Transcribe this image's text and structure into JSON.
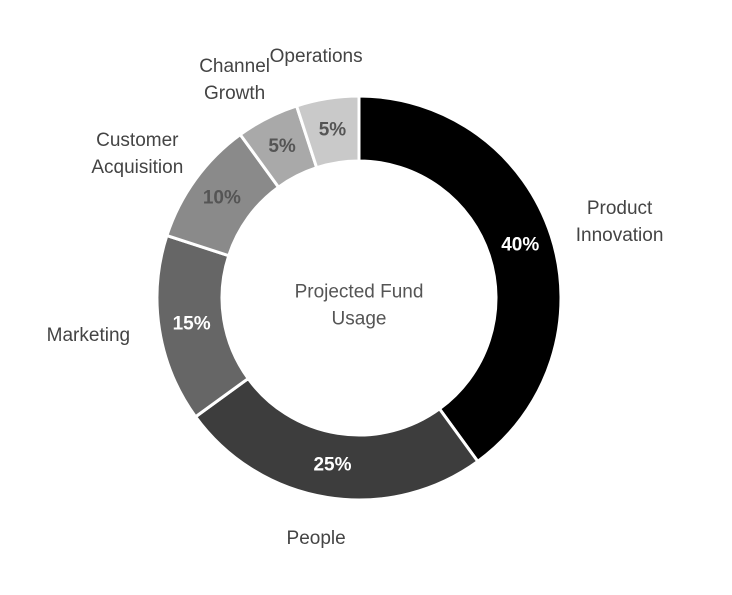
{
  "chart_data": {
    "type": "donut",
    "title": "Projected Fund Usage",
    "categories": [
      "Product Innovation",
      "People",
      "Marketing",
      "Customer Acquisition",
      "Channel Growth",
      "Operations"
    ],
    "values": [
      40,
      25,
      15,
      10,
      5,
      5
    ],
    "value_labels": [
      "40%",
      "25%",
      "15%",
      "10%",
      "5%",
      "5%"
    ],
    "colors": [
      "#000000",
      "#3d3d3d",
      "#666666",
      "#8a8a8a",
      "#a9a9a9",
      "#c9c9c9"
    ]
  }
}
